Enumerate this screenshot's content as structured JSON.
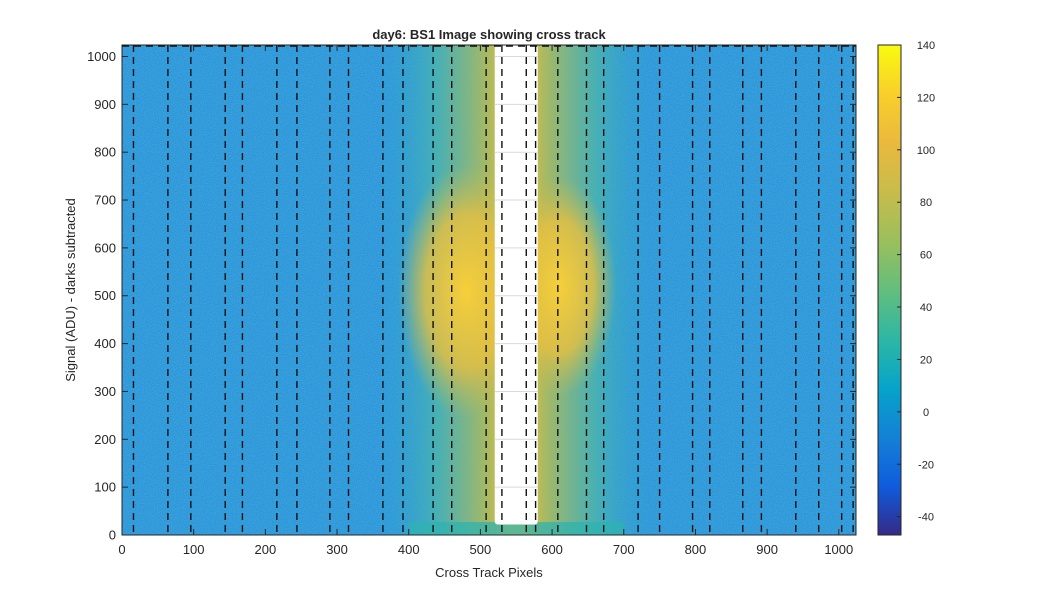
{
  "chart_data": {
    "type": "heatmap",
    "title": "day6: BS1  Image showing cross track",
    "xlabel": "Cross Track Pixels",
    "ylabel": "Signal (ADU) - darks subtracted",
    "xlim": [
      0,
      1024
    ],
    "ylim": [
      0,
      1024
    ],
    "x_ticks": [
      0,
      100,
      200,
      300,
      400,
      500,
      600,
      700,
      800,
      900,
      1000
    ],
    "y_ticks": [
      0,
      100,
      200,
      300,
      400,
      500,
      600,
      700,
      800,
      900,
      1000
    ],
    "colorbar": {
      "colormap": "parula",
      "range": [
        -47,
        140
      ],
      "ticks": [
        -40,
        -20,
        0,
        20,
        40,
        60,
        80,
        100,
        120,
        140
      ]
    },
    "white_region": {
      "x_range": [
        520,
        580
      ],
      "y_range": [
        22,
        1024
      ]
    },
    "dashed_lines_x": [
      16,
      64,
      96,
      144,
      168,
      216,
      244,
      290,
      316,
      364,
      392,
      434,
      460,
      508,
      530,
      564,
      577,
      608,
      648,
      672,
      720,
      750,
      796,
      820,
      866,
      892,
      940,
      972,
      1004,
      1020
    ],
    "grid": false,
    "colors": {
      "background_low": "#1a8fd6",
      "peak": "#f2c63a",
      "frame": "#262626"
    }
  }
}
